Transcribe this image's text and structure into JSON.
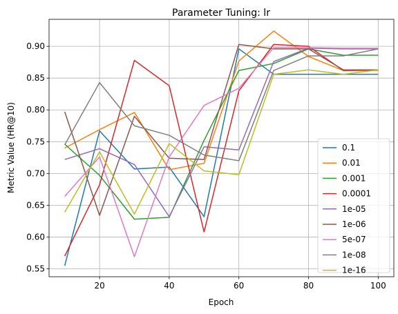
{
  "chart_data": {
    "type": "line",
    "title": "Parameter Tuning: lr",
    "xlabel": "Epoch",
    "ylabel": "Metric Value (HR@10)",
    "xlim": [
      5.5,
      104.5
    ],
    "ylim": [
      0.5375,
      0.9425
    ],
    "xticks": [
      20,
      40,
      60,
      80,
      100
    ],
    "yticks": [
      0.55,
      0.6,
      0.65,
      0.7,
      0.75,
      0.8,
      0.85,
      0.9
    ],
    "grid": true,
    "legend_position": "lower-right",
    "x": [
      10,
      20,
      30,
      40,
      50,
      60,
      70,
      80,
      90,
      100
    ],
    "series": [
      {
        "name": "0.1",
        "color": "#1f77b4",
        "values": [
          0.555,
          0.767,
          0.707,
          0.71,
          0.632,
          0.896,
          0.856,
          0.856,
          0.856,
          0.856
        ]
      },
      {
        "name": "0.01",
        "color": "#ff7f0e",
        "values": [
          0.74,
          0.769,
          0.796,
          0.706,
          0.716,
          0.877,
          0.924,
          0.884,
          0.862,
          0.862
        ]
      },
      {
        "name": "0.001",
        "color": "#2ca02c",
        "values": [
          0.746,
          0.697,
          0.628,
          0.631,
          0.752,
          0.862,
          0.873,
          0.896,
          0.886,
          0.886
        ]
      },
      {
        "name": "0.0001",
        "color": "#d62728",
        "values": [
          0.57,
          0.682,
          0.878,
          0.838,
          0.608,
          0.83,
          0.903,
          0.9,
          0.862,
          0.863
        ]
      },
      {
        "name": "1e-05",
        "color": "#9467bd",
        "values": [
          0.722,
          0.739,
          0.714,
          0.632,
          0.742,
          0.737,
          0.876,
          0.897,
          0.896,
          0.896
        ]
      },
      {
        "name": "1e-06",
        "color": "#8c564b",
        "values": [
          0.797,
          0.634,
          0.79,
          0.724,
          0.722,
          0.903,
          0.896,
          0.896,
          0.863,
          0.863
        ]
      },
      {
        "name": "5e-07",
        "color": "#e377c2",
        "values": [
          0.664,
          0.726,
          0.569,
          0.726,
          0.807,
          0.834,
          0.898,
          0.898,
          0.897,
          0.897
        ]
      },
      {
        "name": "1e-08",
        "color": "#7f7f7f",
        "values": [
          0.745,
          0.843,
          0.775,
          0.76,
          0.729,
          0.72,
          0.862,
          0.885,
          0.885,
          0.896
        ]
      },
      {
        "name": "1e-16",
        "color": "#bcbd22",
        "values": [
          0.639,
          0.734,
          0.636,
          0.747,
          0.704,
          0.698,
          0.856,
          0.863,
          0.856,
          0.863
        ]
      }
    ]
  }
}
